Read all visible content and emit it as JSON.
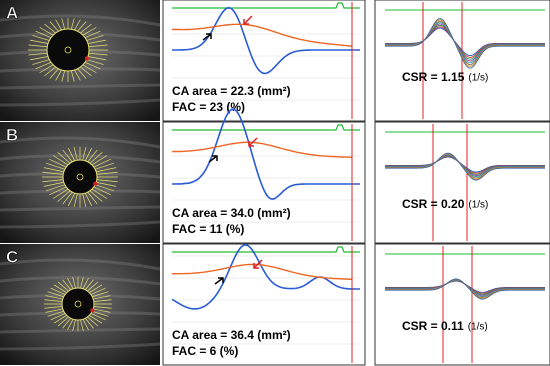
{
  "panels": [
    {
      "label": "A",
      "area": "CA area = 22.3 (mm²)",
      "fac": "FAC = 23 (%)",
      "csr": "CSR = 1.15",
      "csr_unit": "(1/s)"
    },
    {
      "label": "B",
      "area": "CA area = 34.0 (mm²)",
      "fac": "FAC = 11 (%)",
      "csr": "CSR = 0.20",
      "csr_unit": "(1/s)"
    },
    {
      "label": "C",
      "area": "CA area = 36.4 (mm²)",
      "fac": "FAC = 6 (%)",
      "csr": "CSR = 0.11",
      "csr_unit": "(1/s)"
    }
  ]
}
